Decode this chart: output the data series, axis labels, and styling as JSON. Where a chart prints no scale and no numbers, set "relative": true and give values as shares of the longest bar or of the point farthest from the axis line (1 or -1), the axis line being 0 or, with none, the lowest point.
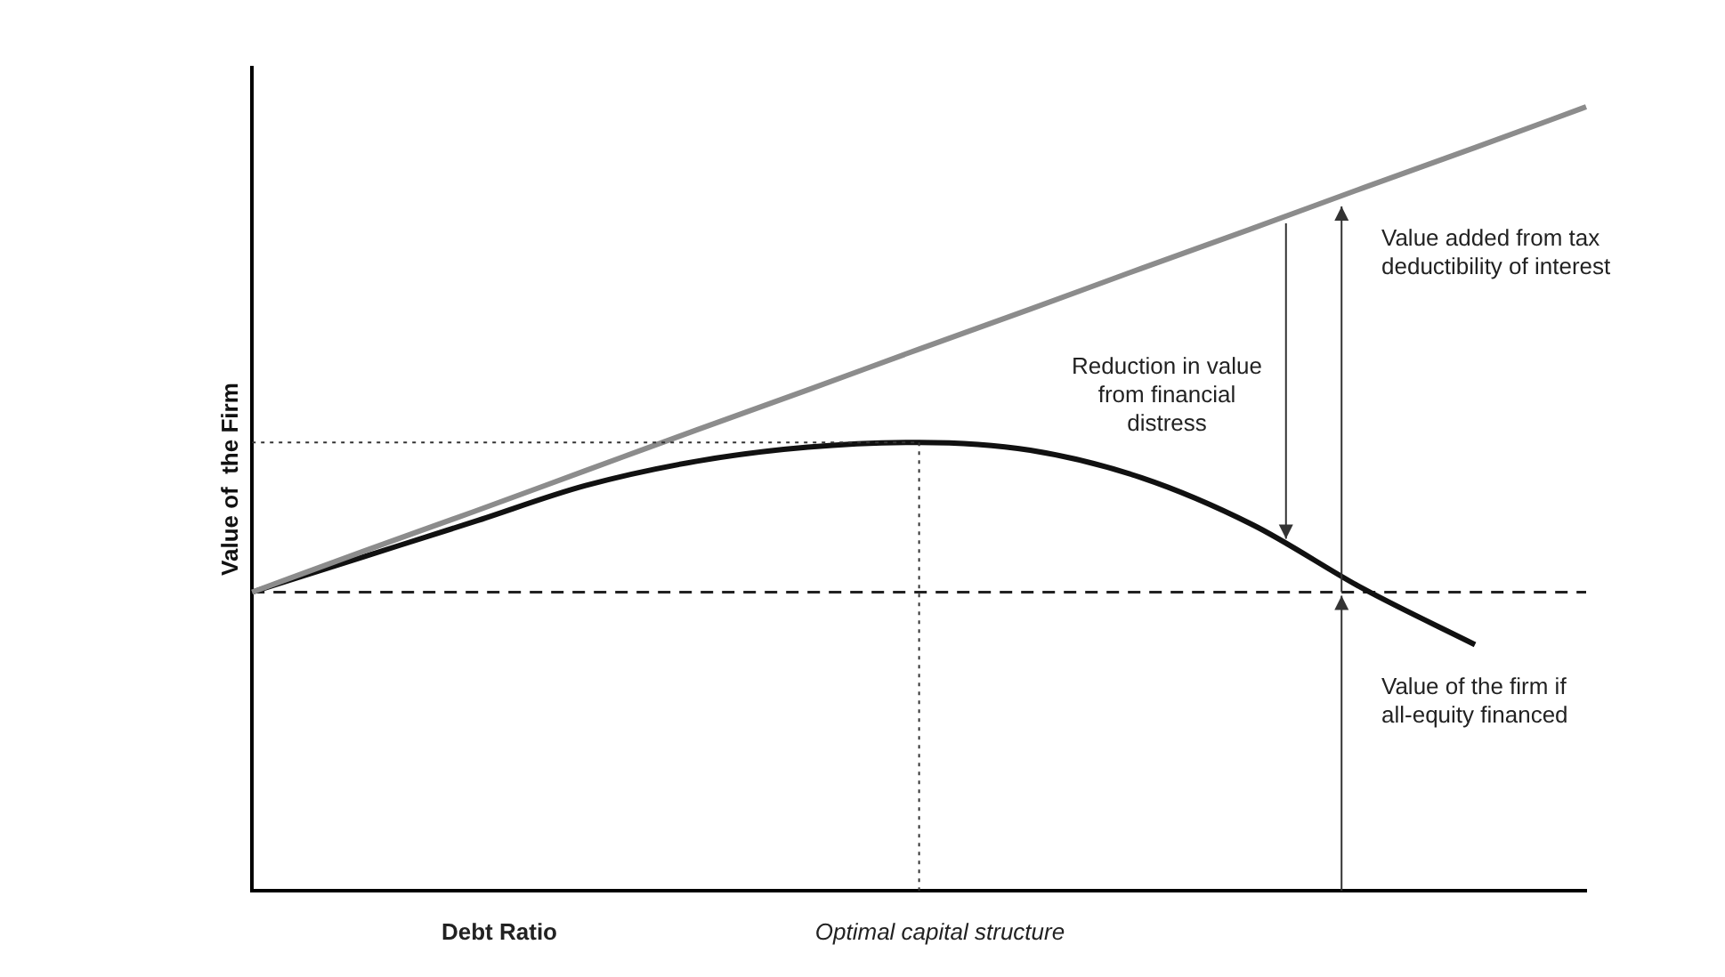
{
  "chart_data": {
    "type": "line",
    "relative": true,
    "xlabel": "Debt Ratio",
    "ylabel": "Value of  the Firm",
    "legend": false,
    "grid": false,
    "marker": "none",
    "categories": [
      null,
      null,
      null,
      null,
      null,
      null,
      null,
      null,
      null,
      null,
      null,
      null,
      null
    ],
    "series": [
      {
        "color": "#8c8c8c",
        "line_style": "solid",
        "values": [
          0.381,
          0.433,
          0.484,
          0.536,
          0.588,
          0.639,
          0.691,
          0.742,
          0.794,
          0.845,
          0.897,
          0.948,
          1.0
        ]
      },
      {
        "color": "#111111",
        "line_style": "solid",
        "values": [
          0.381,
          0.426,
          0.471,
          0.517,
          0.548,
          0.566,
          0.572,
          0.562,
          0.527,
          0.467,
          0.385,
          0.314,
          null
        ]
      },
      {
        "color": "#222222",
        "line_style": "dashed",
        "values": [
          0.381,
          0.381,
          0.381,
          0.381,
          0.381,
          0.381,
          0.381,
          0.381,
          0.381,
          0.381,
          0.381,
          0.381,
          0.381
        ]
      }
    ],
    "annotations": [
      "Value added from tax deductibility of interest",
      "Reduction in value from financial distress",
      "Value of the firm if all-equity financed",
      "Optimal capital structure"
    ]
  }
}
